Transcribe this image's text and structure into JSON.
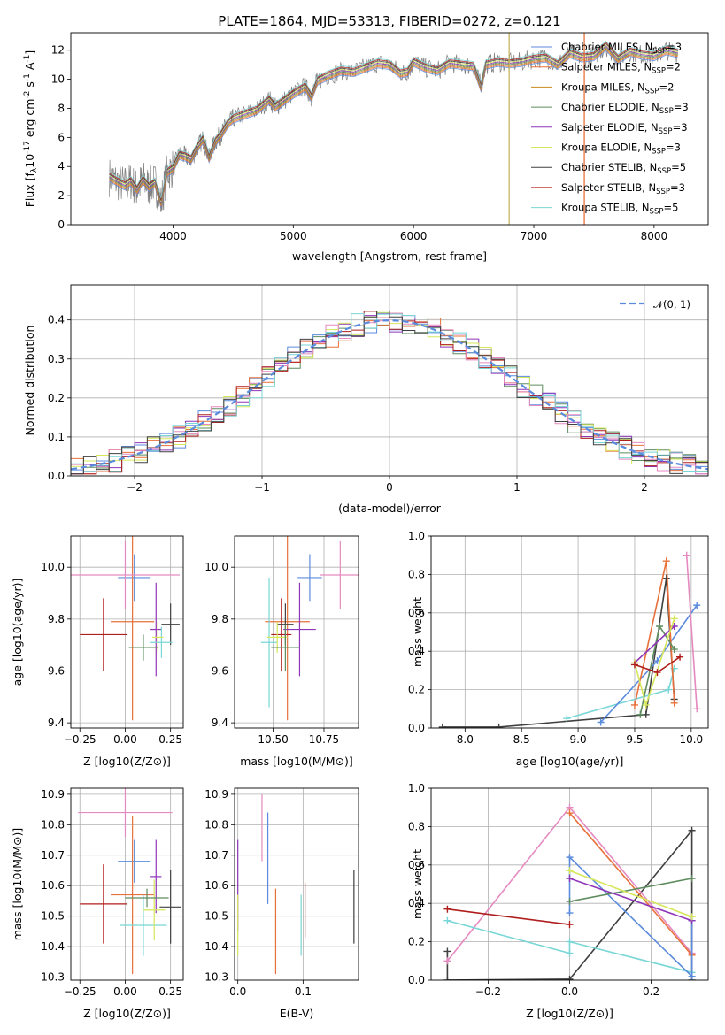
{
  "figure_title": "PLATE=1864, MJD=53313, FIBERID=0272, z=0.121",
  "sub_ssp": "SSP",
  "chart_data": [
    {
      "id": "spectrum",
      "type": "line",
      "title": "PLATE=1864, MJD=53313, FIBERID=0272, z=0.121",
      "xlabel": "wavelength [Angstrom, rest frame]",
      "ylabel_parts": [
        "Flux [f",
        "λ",
        "10",
        "-17",
        " erg cm",
        "-2",
        " s",
        "-1",
        " A",
        "-1",
        "]"
      ],
      "xlim": [
        3150,
        8450
      ],
      "ylim": [
        0,
        13.2
      ],
      "xticks": [
        4000,
        5000,
        6000,
        7000,
        8000
      ],
      "yticks": [
        0,
        2,
        4,
        6,
        8,
        10,
        12
      ],
      "grid": false,
      "legend_loc": "upper right",
      "data_line": {
        "color": "#808080",
        "x": [
          3470,
          3530,
          3600,
          3650,
          3700,
          3750,
          3800,
          3850,
          3900,
          3950,
          4000,
          4050,
          4100,
          4150,
          4200,
          4250,
          4300,
          4350,
          4400,
          4450,
          4500,
          4600,
          4700,
          4800,
          4850,
          4900,
          5000,
          5100,
          5150,
          5200,
          5300,
          5400,
          5500,
          5600,
          5700,
          5800,
          5890,
          5950,
          6000,
          6100,
          6200,
          6300,
          6400,
          6500,
          6560,
          6600,
          6700,
          6800,
          6900,
          7000,
          7100,
          7200,
          7300,
          7400,
          7500,
          7600,
          7700,
          7800,
          7900,
          8000,
          8100,
          8200
        ],
        "y": [
          3.3,
          3.0,
          2.7,
          3.0,
          2.4,
          3.1,
          2.6,
          2.9,
          1.5,
          3.6,
          3.9,
          4.8,
          4.7,
          4.5,
          5.3,
          5.9,
          4.6,
          5.7,
          6.2,
          6.9,
          7.3,
          7.6,
          7.9,
          8.6,
          8.1,
          8.4,
          9.0,
          9.5,
          8.8,
          9.9,
          10.3,
          10.6,
          10.5,
          10.8,
          11.1,
          11.0,
          10.4,
          10.5,
          11.2,
          10.8,
          10.6,
          11.1,
          11.0,
          10.9,
          9.5,
          11.0,
          11.2,
          11.1,
          11.2,
          11.4,
          11.5,
          11.0,
          11.8,
          11.5,
          11.6,
          12.3,
          11.4,
          11.9,
          11.7,
          11.6,
          12.0,
          11.8
        ]
      },
      "series": [
        {
          "name": "Chabrier MILES, N",
          "n": "=3",
          "color": "#5b8bdd"
        },
        {
          "name": "Salpeter MILES, N",
          "n": "=2",
          "color": "#e8703a"
        },
        {
          "name": "Kroupa MILES, N",
          "n": "=2",
          "color": "#c98b1e"
        },
        {
          "name": "Chabrier ELODIE, N",
          "n": "=3",
          "color": "#5e8c5e"
        },
        {
          "name": "Salpeter ELODIE, N",
          "n": "=3",
          "color": "#8e35b8"
        },
        {
          "name": "Kroupa ELODIE, N",
          "n": "=3",
          "color": "#d6e75a"
        },
        {
          "name": "Chabrier STELIB, N",
          "n": "=5",
          "color": "#404040"
        },
        {
          "name": "Salpeter STELIB, N",
          "n": "=3",
          "color": "#b01d1d"
        },
        {
          "name": "Kroupa STELIB, N",
          "n": "=5",
          "color": "#79d6d6"
        }
      ],
      "vertical_lines": [
        {
          "x": 6795,
          "color": "#c9b360"
        },
        {
          "x": 7420,
          "color": "#e8703a"
        }
      ]
    },
    {
      "id": "residuals",
      "type": "histogram",
      "xlabel": "(data-model)/error",
      "ylabel": "Normed distribution",
      "xlim": [
        -2.5,
        2.5
      ],
      "ylim": [
        0,
        0.49
      ],
      "xticks": [
        -2,
        -1,
        0,
        1,
        2
      ],
      "yticks": [
        0.0,
        0.1,
        0.2,
        0.3,
        0.4
      ],
      "grid": true,
      "legend": {
        "label": "𝒩(0, 1)",
        "loc": "upper right"
      },
      "bin_width": 0.1,
      "normal_curve": {
        "mean": 0,
        "sigma": 1,
        "color": "#5b8bdd",
        "style": "dashed"
      },
      "series_colors": [
        "#5e8c5e",
        "#5b8bdd",
        "#e8703a",
        "#8e35b8",
        "#d6e75a",
        "#b01d1d",
        "#e58ac0",
        "#79d6d6",
        "#404040"
      ]
    },
    {
      "id": "age_vs_Z",
      "type": "errorbar",
      "xlabel": "Z [log10(Z/Z⊙)]",
      "ylabel": "age  [log10(age/yr)]",
      "xlim": [
        -0.3,
        0.32
      ],
      "ylim": [
        9.38,
        10.12
      ],
      "xticks": [
        -0.25,
        0.0,
        0.25
      ],
      "yticks": [
        9.4,
        9.6,
        9.8,
        10.0
      ],
      "grid": true,
      "points": [
        {
          "x": 0.05,
          "y": 9.96,
          "xerr": 0.09,
          "yerr": 0.09,
          "color": "#5b8bdd"
        },
        {
          "x": 0.04,
          "y": 9.79,
          "xerr": 0.12,
          "yerr": 0.38,
          "color": "#e8703a"
        },
        {
          "x": 0.0,
          "y": 9.97,
          "xerr": 0.3,
          "yerr": 0.13,
          "color": "#e58ac0"
        },
        {
          "x": -0.12,
          "y": 9.74,
          "xerr": 0.13,
          "yerr": 0.14,
          "color": "#b01d1d"
        },
        {
          "x": 0.17,
          "y": 9.76,
          "xerr": 0.03,
          "yerr": 0.18,
          "color": "#8e35b8"
        },
        {
          "x": 0.25,
          "y": 9.78,
          "xerr": 0.05,
          "yerr": 0.08,
          "color": "#404040"
        },
        {
          "x": 0.2,
          "y": 9.71,
          "xerr": 0.06,
          "yerr": 0.06,
          "color": "#79d6d6"
        },
        {
          "x": 0.18,
          "y": 9.73,
          "xerr": 0.03,
          "yerr": 0.06,
          "color": "#d6e75a"
        },
        {
          "x": 0.1,
          "y": 9.69,
          "xerr": 0.08,
          "yerr": 0.05,
          "color": "#5e8c5e"
        }
      ]
    },
    {
      "id": "age_vs_mass",
      "type": "errorbar",
      "xlabel": "mass [log10(M/M⊙)]",
      "xlim": [
        10.31,
        10.92
      ],
      "ylim": [
        9.38,
        10.12
      ],
      "xticks": [
        10.5,
        10.75
      ],
      "yticks": [
        9.4,
        9.6,
        9.8,
        10.0
      ],
      "grid": true,
      "points": [
        {
          "x": 10.68,
          "y": 9.96,
          "xerr": 0.06,
          "yerr": 0.09,
          "color": "#5b8bdd"
        },
        {
          "x": 10.57,
          "y": 9.79,
          "xerr": 0.11,
          "yerr": 0.38,
          "color": "#e8703a"
        },
        {
          "x": 10.83,
          "y": 9.97,
          "xerr": 0.1,
          "yerr": 0.13,
          "color": "#e58ac0"
        },
        {
          "x": 10.54,
          "y": 9.74,
          "xerr": 0.05,
          "yerr": 0.14,
          "color": "#b01d1d"
        },
        {
          "x": 10.63,
          "y": 9.76,
          "xerr": 0.08,
          "yerr": 0.18,
          "color": "#8e35b8"
        },
        {
          "x": 10.56,
          "y": 9.78,
          "xerr": 0.04,
          "yerr": 0.08,
          "color": "#404040"
        },
        {
          "x": 10.48,
          "y": 9.71,
          "xerr": 0.04,
          "yerr": 0.25,
          "color": "#79d6d6"
        },
        {
          "x": 10.52,
          "y": 9.73,
          "xerr": 0.05,
          "yerr": 0.06,
          "color": "#d6e75a"
        },
        {
          "x": 10.56,
          "y": 9.69,
          "xerr": 0.07,
          "yerr": 0.09,
          "color": "#5e8c5e"
        }
      ]
    },
    {
      "id": "weight_vs_age",
      "type": "line",
      "xlabel": "age  [log10(age/yr)]",
      "ylabel": "mass weight",
      "xlim": [
        7.7,
        10.15
      ],
      "ylim": [
        0,
        1
      ],
      "xticks": [
        8.0,
        8.5,
        9.0,
        9.5,
        10.0
      ],
      "yticks": [
        0.0,
        0.2,
        0.4,
        0.6,
        0.8,
        1.0
      ],
      "grid": true,
      "series": [
        {
          "color": "#404040",
          "x": [
            7.8,
            8.3,
            9.6,
            9.78,
            9.85
          ],
          "y": [
            0.005,
            0.005,
            0.07,
            0.78,
            0.15
          ]
        },
        {
          "color": "#79d6d6",
          "x": [
            8.9,
            9.8,
            9.85
          ],
          "y": [
            0.05,
            0.2,
            0.31
          ]
        },
        {
          "color": "#5b8bdd",
          "x": [
            9.2,
            9.7,
            10.05
          ],
          "y": [
            0.03,
            0.35,
            0.64
          ]
        },
        {
          "color": "#e8703a",
          "x": [
            9.5,
            9.78,
            9.85
          ],
          "y": [
            0.12,
            0.87,
            0.13
          ]
        },
        {
          "color": "#5e8c5e",
          "x": [
            9.55,
            9.72,
            9.85
          ],
          "y": [
            0.07,
            0.53,
            0.41
          ]
        },
        {
          "color": "#8e35b8",
          "x": [
            9.5,
            9.85
          ],
          "y": [
            0.34,
            0.53
          ]
        },
        {
          "color": "#d6e75a",
          "x": [
            9.5,
            9.6,
            9.85
          ],
          "y": [
            0.34,
            0.12,
            0.57
          ]
        },
        {
          "color": "#b01d1d",
          "x": [
            9.5,
            9.7,
            9.9
          ],
          "y": [
            0.33,
            0.29,
            0.37
          ]
        },
        {
          "color": "#e58ac0",
          "x": [
            9.96,
            10.05
          ],
          "y": [
            0.9,
            0.1
          ]
        }
      ]
    },
    {
      "id": "mass_vs_Z",
      "type": "errorbar",
      "xlabel": "Z [log10(Z/Z⊙)]",
      "ylabel": "mass [log10(M/M⊙)]",
      "xlim": [
        -0.3,
        0.32
      ],
      "ylim": [
        10.29,
        10.92
      ],
      "xticks": [
        -0.25,
        0.0,
        0.25
      ],
      "yticks": [
        10.3,
        10.4,
        10.5,
        10.6,
        10.7,
        10.8,
        10.9
      ],
      "grid": true,
      "points": [
        {
          "x": 0.05,
          "y": 10.68,
          "xerr": 0.09,
          "yerr": 0.07,
          "color": "#5b8bdd"
        },
        {
          "x": 0.04,
          "y": 10.57,
          "xerr": 0.12,
          "yerr": 0.26,
          "color": "#e8703a"
        },
        {
          "x": 0.0,
          "y": 10.84,
          "xerr": 0.26,
          "yerr": 0.08,
          "color": "#e58ac0"
        },
        {
          "x": -0.12,
          "y": 10.54,
          "xerr": 0.13,
          "yerr": 0.13,
          "color": "#b01d1d"
        },
        {
          "x": 0.17,
          "y": 10.63,
          "xerr": 0.03,
          "yerr": 0.12,
          "color": "#8e35b8"
        },
        {
          "x": 0.25,
          "y": 10.53,
          "xerr": 0.06,
          "yerr": 0.12,
          "color": "#404040"
        },
        {
          "x": 0.1,
          "y": 10.47,
          "xerr": 0.13,
          "yerr": 0.1,
          "color": "#79d6d6"
        },
        {
          "x": 0.16,
          "y": 10.52,
          "xerr": 0.06,
          "yerr": 0.1,
          "color": "#d6e75a"
        },
        {
          "x": 0.12,
          "y": 10.56,
          "xerr": 0.12,
          "yerr": 0.03,
          "color": "#5e8c5e"
        }
      ]
    },
    {
      "id": "mass_vs_ebv",
      "type": "errorbar",
      "xlabel": "E(B-V)",
      "xlim": [
        -0.005,
        0.185
      ],
      "ylim": [
        10.29,
        10.92
      ],
      "xticks": [
        0.0,
        0.1
      ],
      "yticks": [
        10.3,
        10.4,
        10.5,
        10.6,
        10.7,
        10.8,
        10.9
      ],
      "grid": true,
      "points": [
        {
          "x": 0.0,
          "y": 10.6,
          "yerr": 0.15,
          "color": "#8e35b8"
        },
        {
          "x": 0.0,
          "y": 10.47,
          "yerr": 0.1,
          "color": "#d6e75a"
        },
        {
          "x": 0.037,
          "y": 10.79,
          "yerr": 0.11,
          "color": "#e58ac0"
        },
        {
          "x": 0.046,
          "y": 10.69,
          "yerr": 0.15,
          "color": "#5b8bdd"
        },
        {
          "x": 0.058,
          "y": 10.45,
          "yerr": 0.14,
          "color": "#e8703a"
        },
        {
          "x": 0.097,
          "y": 10.47,
          "yerr": 0.1,
          "color": "#79d6d6"
        },
        {
          "x": 0.103,
          "y": 10.52,
          "yerr": 0.09,
          "color": "#b01d1d"
        },
        {
          "x": 0.178,
          "y": 10.53,
          "yerr": 0.12,
          "color": "#404040"
        }
      ]
    },
    {
      "id": "weight_vs_Z",
      "type": "line",
      "xlabel": "Z [log10(Z/Z⊙)]",
      "ylabel": "mass weight",
      "xlim": [
        -0.34,
        0.34
      ],
      "ylim": [
        0,
        1
      ],
      "xticks": [
        -0.2,
        0.0,
        0.2
      ],
      "yticks": [
        0.0,
        0.2,
        0.4,
        0.6,
        0.8,
        1.0
      ],
      "grid": true,
      "series": [
        {
          "color": "#404040",
          "x": [
            -0.3,
            -0.3,
            0.0,
            0.3,
            0.3
          ],
          "y": [
            0.15,
            0.0,
            0.005,
            0.78,
            0.0
          ]
        },
        {
          "color": "#e58ac0",
          "x": [
            -0.3,
            0.0,
            0.3
          ],
          "y": [
            0.1,
            0.9,
            0.14
          ]
        },
        {
          "color": "#e8703a",
          "x": [
            0.0,
            0.3
          ],
          "y": [
            0.87,
            0.13
          ]
        },
        {
          "color": "#b01d1d",
          "x": [
            -0.3,
            0.0
          ],
          "y": [
            0.37,
            0.29
          ]
        },
        {
          "color": "#79d6d6",
          "x": [
            -0.3,
            0.0,
            0.0,
            0.3
          ],
          "y": [
            0.31,
            0.14,
            0.2,
            0.04
          ]
        },
        {
          "color": "#5b8bdd",
          "x": [
            0.0,
            0.0,
            0.3,
            0.3
          ],
          "y": [
            0.35,
            0.64,
            0.02,
            0.31
          ]
        },
        {
          "color": "#5e8c5e",
          "x": [
            0.0,
            0.3
          ],
          "y": [
            0.41,
            0.53
          ]
        },
        {
          "color": "#8e35b8",
          "x": [
            0.0,
            0.3
          ],
          "y": [
            0.53,
            0.31
          ]
        },
        {
          "color": "#d6e75a",
          "x": [
            0.0,
            0.3
          ],
          "y": [
            0.57,
            0.33
          ]
        }
      ]
    }
  ]
}
